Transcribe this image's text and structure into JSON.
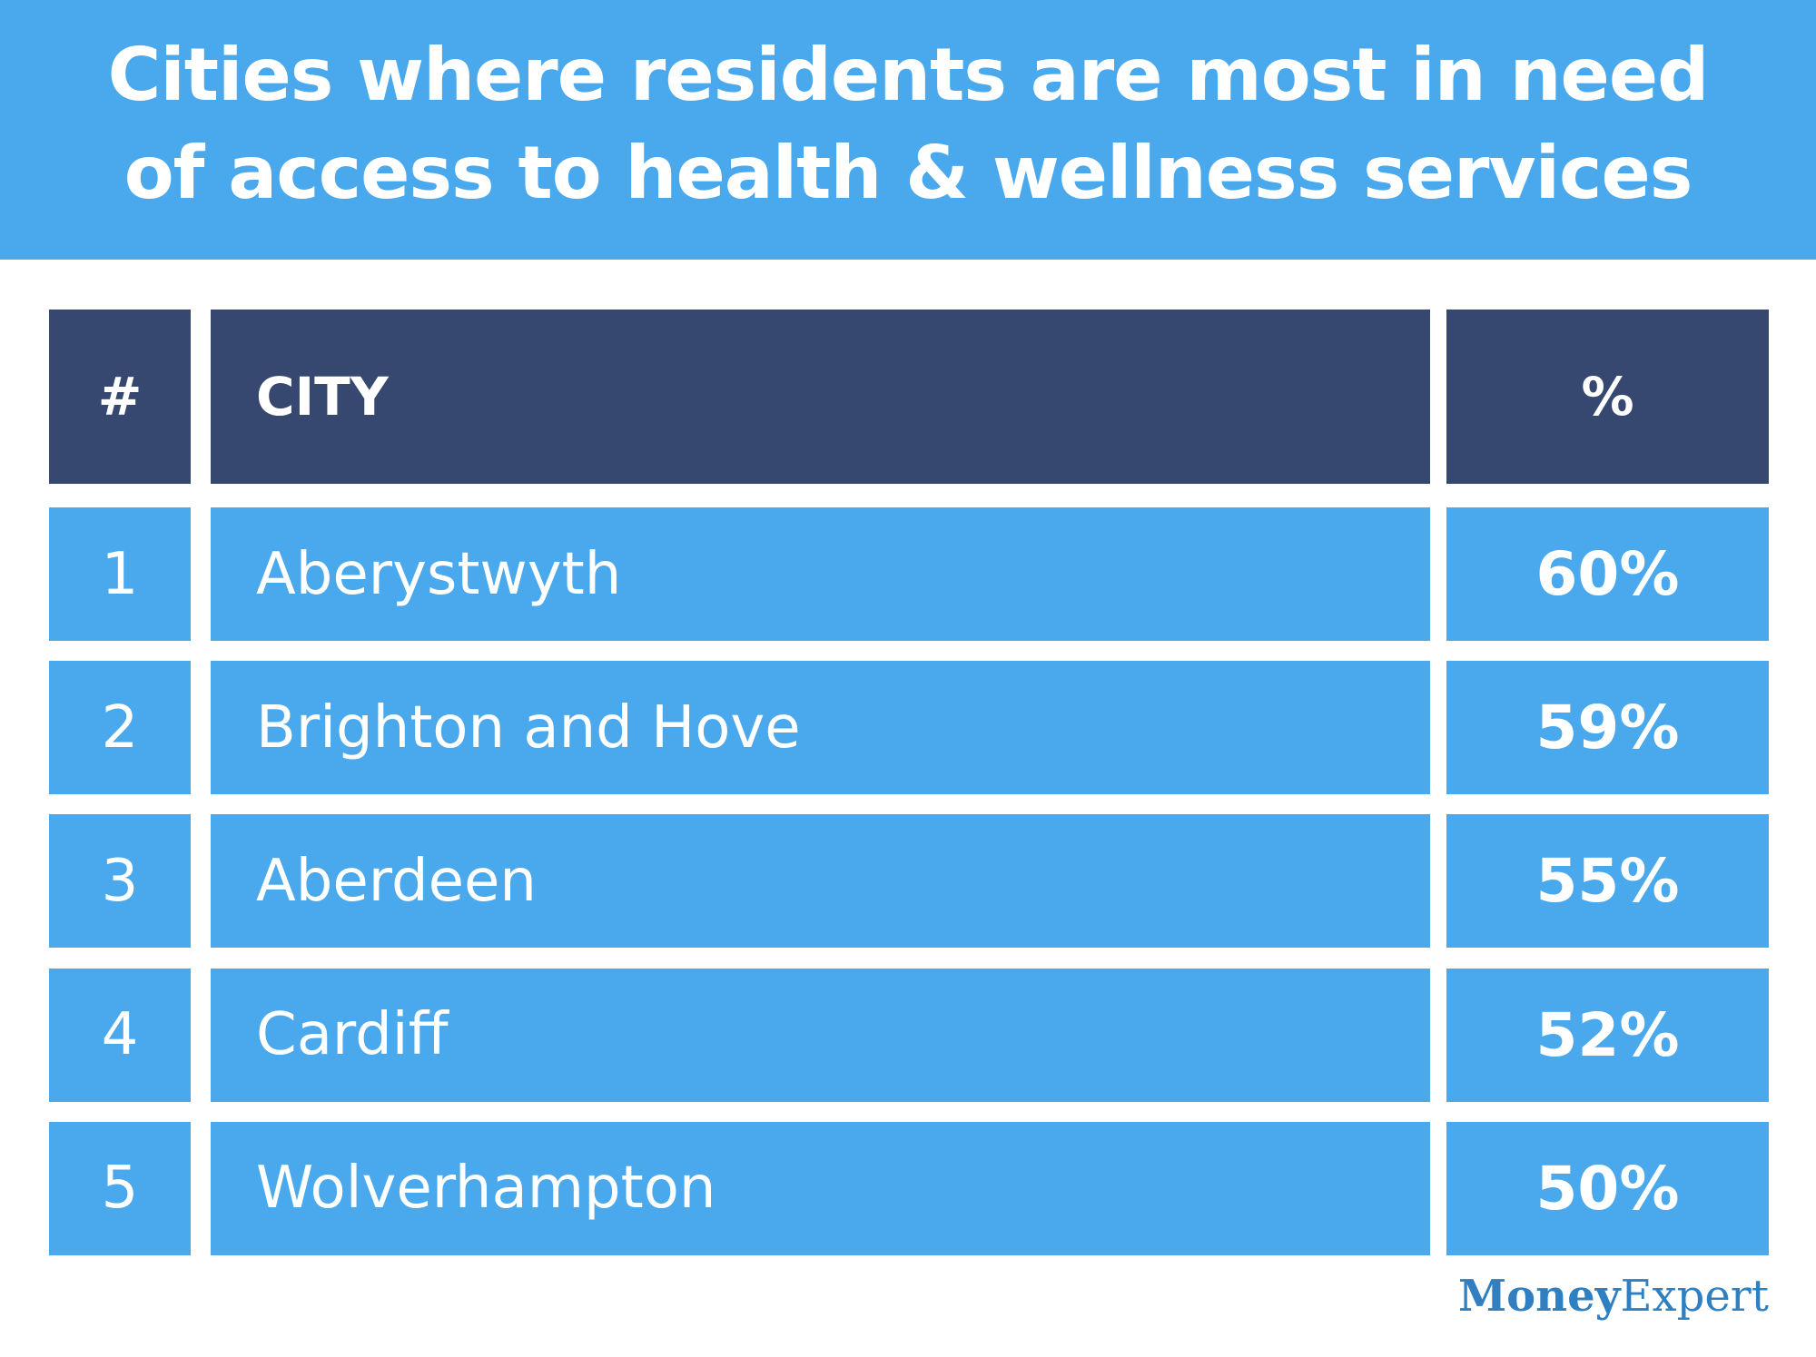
{
  "header": {
    "title": [
      "Cities where residents are most in need",
      "of access to health & wellness services"
    ]
  },
  "table": {
    "columns": [
      "#",
      "CITY",
      "%"
    ],
    "rows": [
      [
        "1",
        "Aberystwyth",
        "60%"
      ],
      [
        "2",
        "Brighton and Hove",
        "59%"
      ],
      [
        "3",
        "Aberdeen",
        "55%"
      ],
      [
        "4",
        "Cardiff",
        "52%"
      ],
      [
        "5",
        "Wolverhampton",
        "50%"
      ]
    ]
  },
  "logo": {
    "bold": "Money",
    "light": "Expert"
  }
}
